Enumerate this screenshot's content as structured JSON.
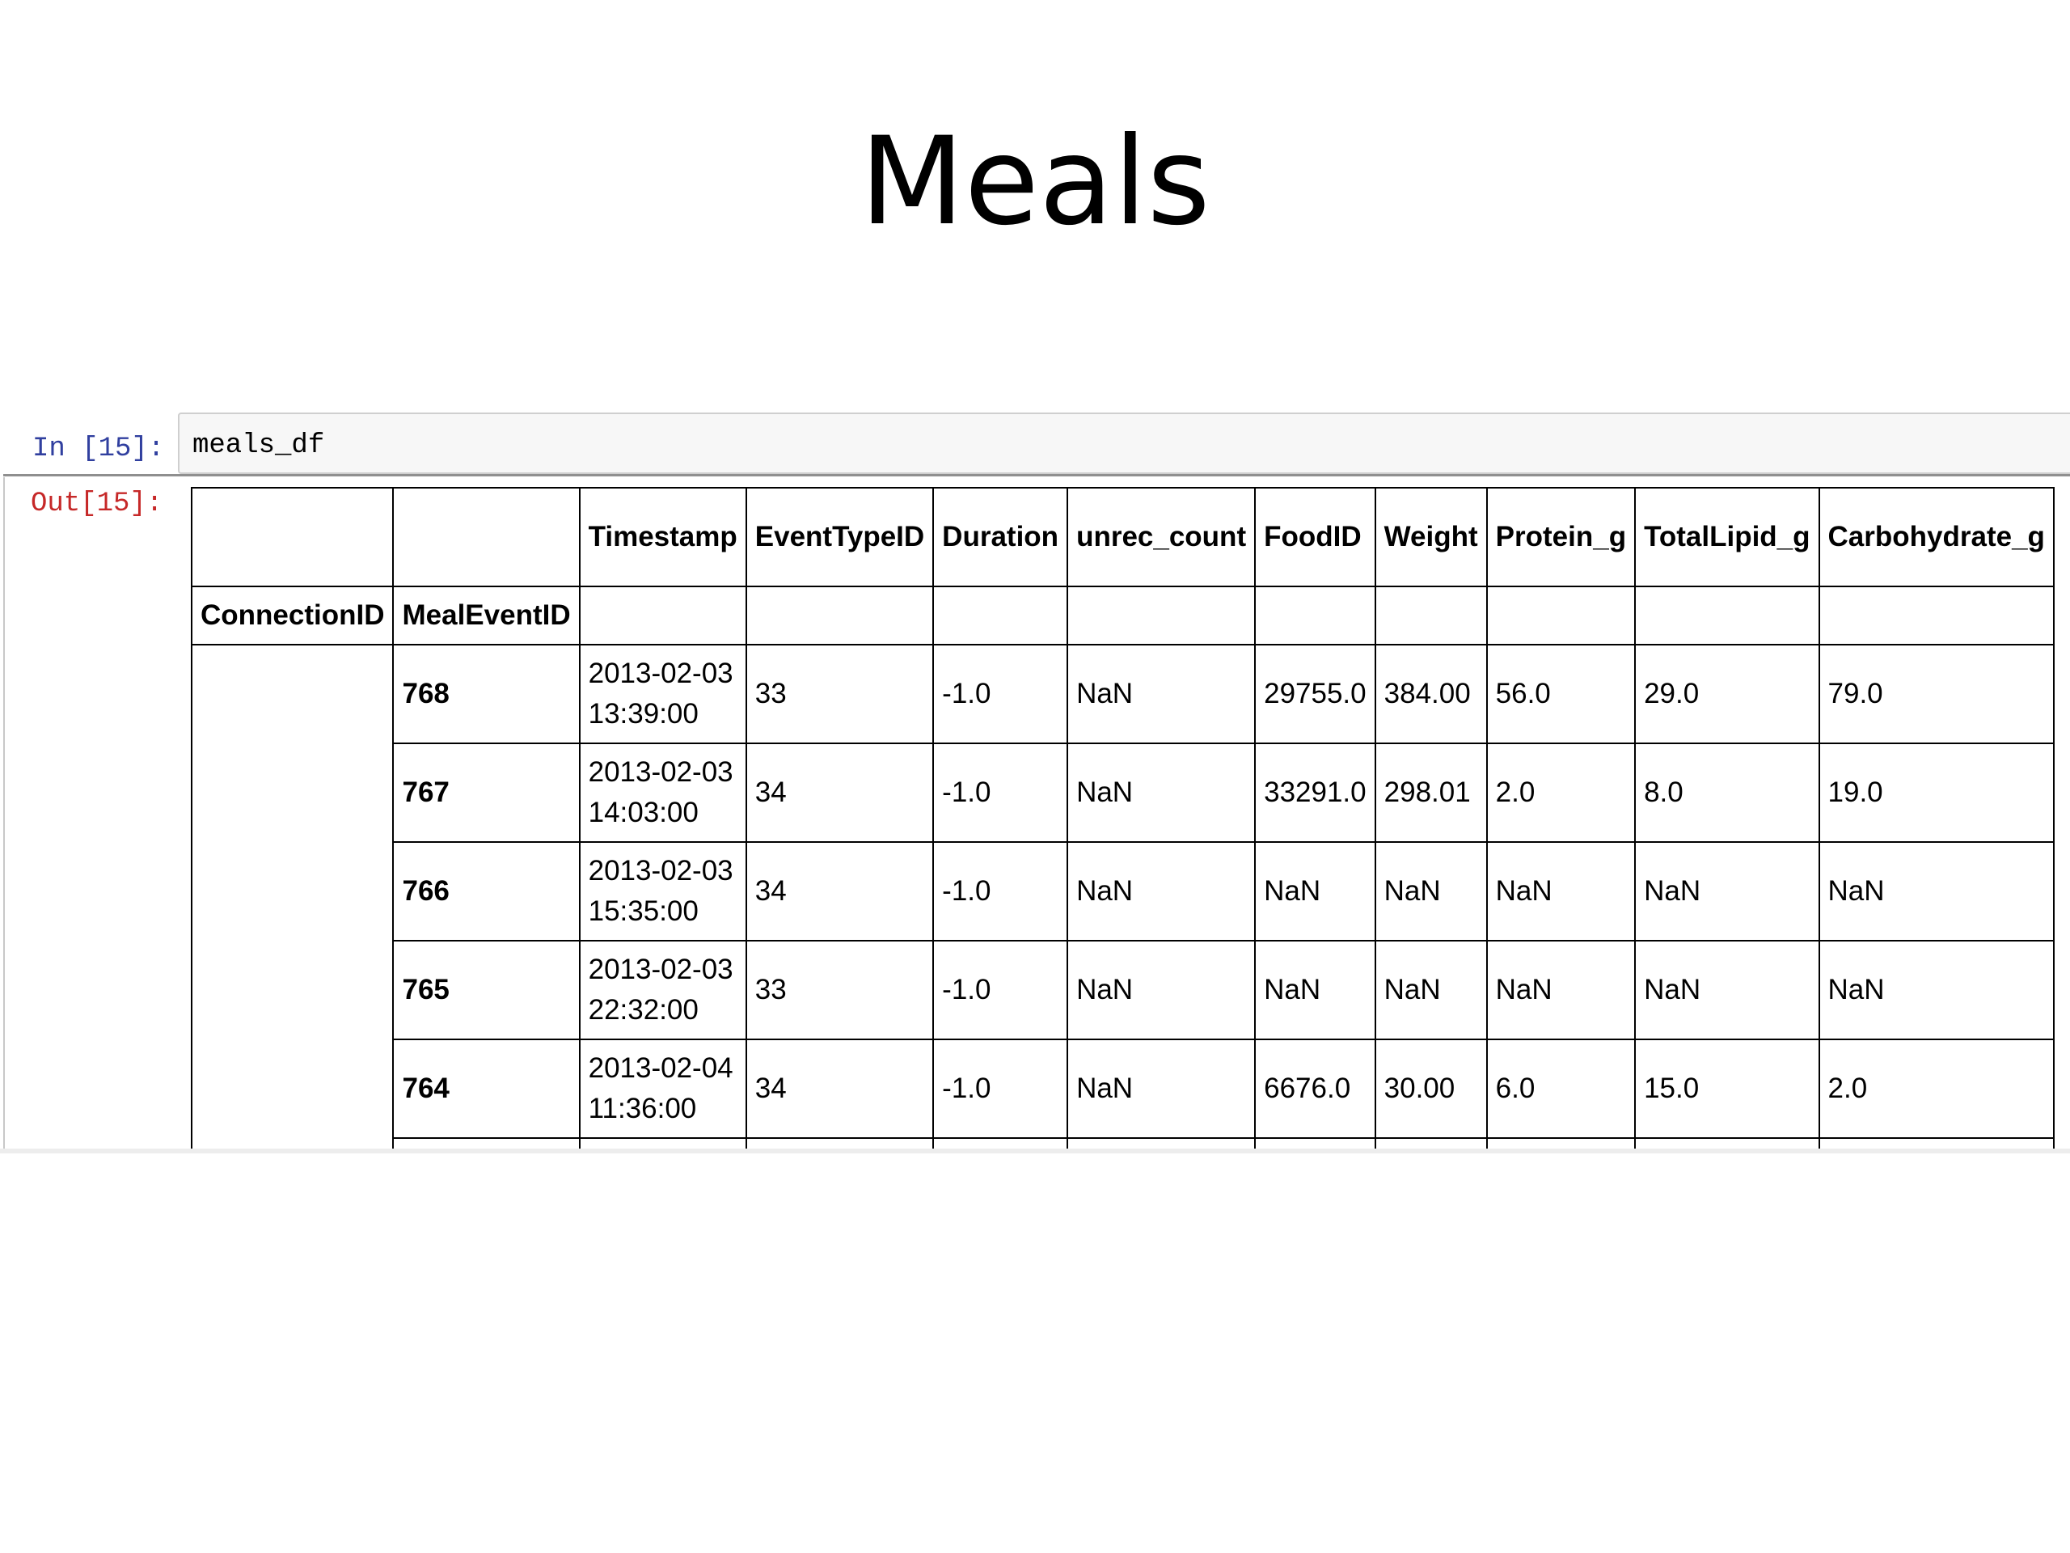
{
  "slide": {
    "title": "Meals"
  },
  "notebook": {
    "input_prompt": "In [15]:",
    "code": "meals_df",
    "output_prompt": "Out[15]:"
  },
  "table": {
    "columns": [
      "Timestamp",
      "EventTypeID",
      "Duration",
      "unrec_count",
      "FoodID",
      "Weight",
      "Protein_g",
      "TotalLipid_g",
      "Carbohydrate_g"
    ],
    "index_names": [
      "ConnectionID",
      "MealEventID"
    ],
    "rows": [
      {
        "id": "768",
        "timestamp_date": "2013-02-03",
        "timestamp_time": "13:39:00",
        "cells": [
          "33",
          "-1.0",
          "NaN",
          "29755.0",
          "384.00",
          "56.0",
          "29.0",
          "79.0"
        ]
      },
      {
        "id": "767",
        "timestamp_date": "2013-02-03",
        "timestamp_time": "14:03:00",
        "cells": [
          "34",
          "-1.0",
          "NaN",
          "33291.0",
          "298.01",
          "2.0",
          "8.0",
          "19.0"
        ]
      },
      {
        "id": "766",
        "timestamp_date": "2013-02-03",
        "timestamp_time": "15:35:00",
        "cells": [
          "34",
          "-1.0",
          "NaN",
          "NaN",
          "NaN",
          "NaN",
          "NaN",
          "NaN"
        ]
      },
      {
        "id": "765",
        "timestamp_date": "2013-02-03",
        "timestamp_time": "22:32:00",
        "cells": [
          "33",
          "-1.0",
          "NaN",
          "NaN",
          "NaN",
          "NaN",
          "NaN",
          "NaN"
        ]
      },
      {
        "id": "764",
        "timestamp_date": "2013-02-04",
        "timestamp_time": "11:36:00",
        "cells": [
          "34",
          "-1.0",
          "NaN",
          "6676.0",
          "30.00",
          "6.0",
          "15.0",
          "2.0"
        ]
      }
    ]
  }
}
